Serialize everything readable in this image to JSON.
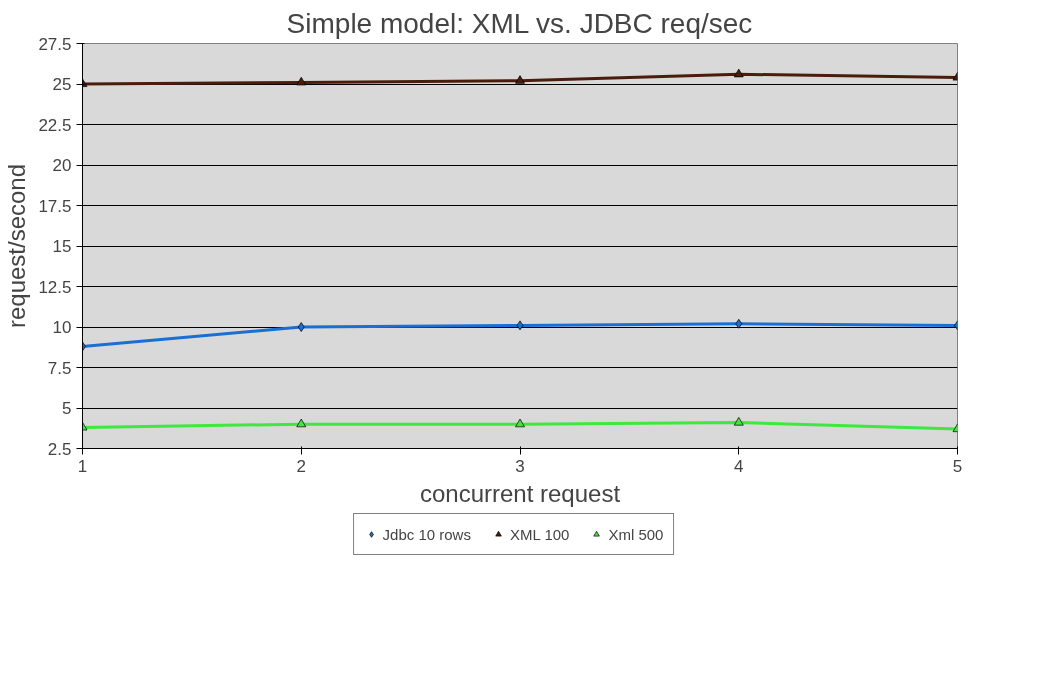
{
  "chart_data": {
    "type": "line",
    "title": "Simple model: XML vs. JDBC req/sec",
    "xlabel": "concurrent request",
    "ylabel": "request/second",
    "x": [
      1,
      2,
      3,
      4,
      5
    ],
    "xlim": [
      1,
      5
    ],
    "xticks": [
      1,
      2,
      3,
      4,
      5
    ],
    "ylim": [
      2.5,
      27.5
    ],
    "yticks": [
      2.5,
      5,
      7.5,
      10,
      12.5,
      15,
      17.5,
      20,
      22.5,
      25,
      27.5
    ],
    "grid": "y",
    "legend": "bottom",
    "line_style": "solid",
    "series": [
      {
        "name": "Jdbc 10 rows",
        "color": "#1a6fd4",
        "marker": "diamond",
        "values": [
          8.8,
          10.0,
          10.1,
          10.2,
          10.1
        ]
      },
      {
        "name": "XML 100",
        "color": "#4a1c0c",
        "marker": "triangle",
        "values": [
          25.0,
          25.1,
          25.2,
          25.6,
          25.4
        ]
      },
      {
        "name": "Xml 500",
        "color": "#3ee83e",
        "marker": "triangle",
        "values": [
          3.8,
          4.0,
          4.0,
          4.1,
          3.7
        ]
      }
    ]
  }
}
